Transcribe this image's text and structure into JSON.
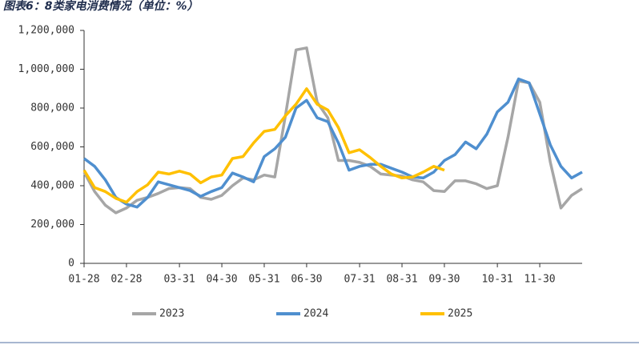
{
  "chart_data": {
    "type": "line",
    "title": "图表6：8类家电消费情况（单位：%）",
    "categories": [
      "01-28",
      null,
      null,
      null,
      "02-28",
      null,
      null,
      null,
      null,
      "03-31",
      null,
      null,
      null,
      "04-30",
      null,
      null,
      null,
      "05-31",
      null,
      null,
      null,
      "06-30",
      null,
      null,
      null,
      null,
      "07-31",
      null,
      null,
      null,
      "08-31",
      null,
      null,
      null,
      "09-30",
      null,
      null,
      null,
      null,
      "10-31",
      null,
      null,
      null,
      "11-30",
      null,
      null,
      null,
      null
    ],
    "series": [
      {
        "name": "2023",
        "color": "#a6a6a6",
        "values": [
          470000,
          370000,
          300000,
          260000,
          285000,
          325000,
          340000,
          360000,
          385000,
          390000,
          385000,
          340000,
          330000,
          350000,
          400000,
          440000,
          430000,
          455000,
          445000,
          760000,
          1100000,
          1110000,
          830000,
          750000,
          530000,
          530000,
          520000,
          500000,
          460000,
          455000,
          450000,
          430000,
          420000,
          375000,
          370000,
          425000,
          425000,
          410000,
          385000,
          400000,
          650000,
          940000,
          930000,
          830000,
          520000,
          285000,
          350000,
          385000
        ]
      },
      {
        "name": "2024",
        "color": "#4f8fcf",
        "values": [
          540000,
          500000,
          430000,
          340000,
          305000,
          290000,
          340000,
          420000,
          405000,
          390000,
          375000,
          345000,
          370000,
          390000,
          465000,
          445000,
          420000,
          550000,
          590000,
          650000,
          800000,
          840000,
          750000,
          730000,
          620000,
          480000,
          500000,
          510000,
          510000,
          490000,
          470000,
          445000,
          440000,
          470000,
          530000,
          560000,
          625000,
          590000,
          665000,
          780000,
          830000,
          950000,
          930000,
          770000,
          610000,
          500000,
          440000,
          470000
        ]
      },
      {
        "name": "2025",
        "color": "#ffc000",
        "values": [
          480000,
          390000,
          370000,
          335000,
          315000,
          370000,
          405000,
          470000,
          460000,
          475000,
          460000,
          415000,
          445000,
          455000,
          540000,
          550000,
          620000,
          680000,
          690000,
          760000,
          820000,
          900000,
          820000,
          790000,
          700000,
          570000,
          585000,
          545000,
          500000,
          460000,
          440000,
          445000,
          470000,
          500000,
          480000,
          null,
          null,
          null,
          null,
          null,
          null,
          null,
          null,
          null,
          null,
          null,
          null,
          null
        ]
      }
    ],
    "ylim": [
      0,
      1200000
    ],
    "yticks": [
      0,
      {
        "value": 200000,
        "label": "200,000"
      },
      {
        "value": 400000,
        "label": "400,000"
      },
      {
        "value": 600000,
        "label": "600,000"
      },
      {
        "value": 800000,
        "label": "800,000"
      },
      {
        "value": 1000000,
        "label": "1,000,000"
      },
      {
        "value": 1200000,
        "label": "1,200,000"
      }
    ],
    "grid": false,
    "legend": "bottom"
  }
}
